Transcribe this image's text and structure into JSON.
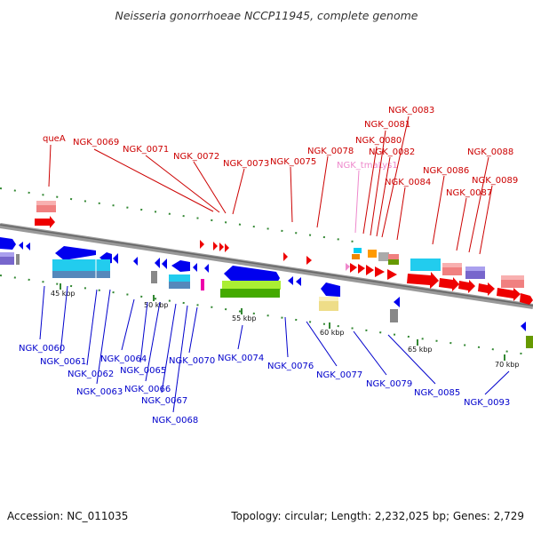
{
  "title": "Neisseria gonorrhoeae NCCP11945, complete genome",
  "footer": {
    "accession": "Accession: NC_011035",
    "topology": "Topology: circular; Length: 2,232,025 bp; Genes: 2,729"
  },
  "colors": {
    "forward_label": "#cc0000",
    "reverse_label": "#0000cc",
    "trna_label": "#ee88cc",
    "backbone": "#888888"
  },
  "tick_labels": [
    "45 kbp",
    "50 kbp",
    "55 kbp",
    "60 kbp",
    "65 kbp",
    "70 kbp"
  ],
  "forward_genes": [
    "queA",
    "NGK_0069",
    "NGK_0071",
    "NGK_0072",
    "NGK_0073",
    "NGK_0075",
    "NGK_0078",
    "NGK_tmaLys1",
    "NGK_0080",
    "NGK_0081",
    "NGK_0082",
    "NGK_0083",
    "NGK_0084",
    "NGK_0086",
    "NGK_0087",
    "NGK_0088",
    "NGK_0089"
  ],
  "reverse_genes": [
    "NGK_0060",
    "NGK_0061",
    "NGK_0062",
    "NGK_0063",
    "NGK_0064",
    "NGK_0065",
    "NGK_0066",
    "NGK_0067",
    "NGK_0068",
    "NGK_0070",
    "NGK_0074",
    "NGK_0076",
    "NGK_0077",
    "NGK_0079",
    "NGK_0085",
    "NGK_0093"
  ]
}
